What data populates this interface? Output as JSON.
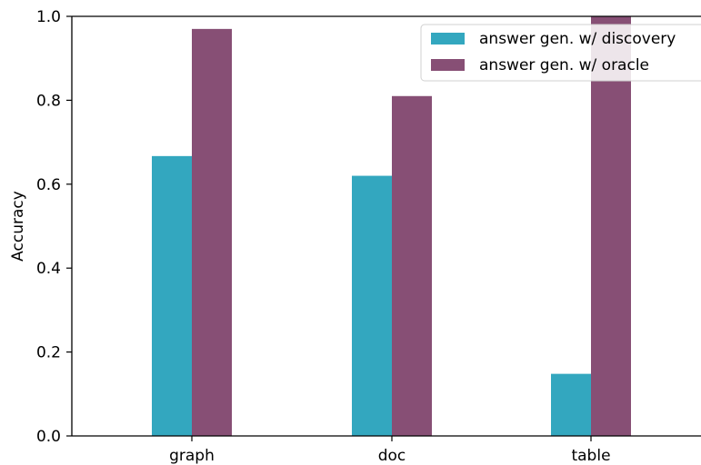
{
  "chart_data": {
    "type": "bar",
    "categories": [
      "graph",
      "doc",
      "table"
    ],
    "series": [
      {
        "name": "answer gen. w/ discovery",
        "values": [
          0.667,
          0.62,
          0.148
        ],
        "color": "#33a7bf"
      },
      {
        "name": "answer gen. w/ oracle",
        "values": [
          0.97,
          0.81,
          1.0
        ],
        "color": "#874f75"
      }
    ],
    "xlabel": "",
    "ylabel": "Accuracy",
    "ylim": [
      0,
      1.0
    ],
    "yticks": [
      "0.0",
      "0.2",
      "0.4",
      "0.6",
      "0.8",
      "1.0"
    ],
    "grid": false,
    "legend_position": "top-right"
  }
}
